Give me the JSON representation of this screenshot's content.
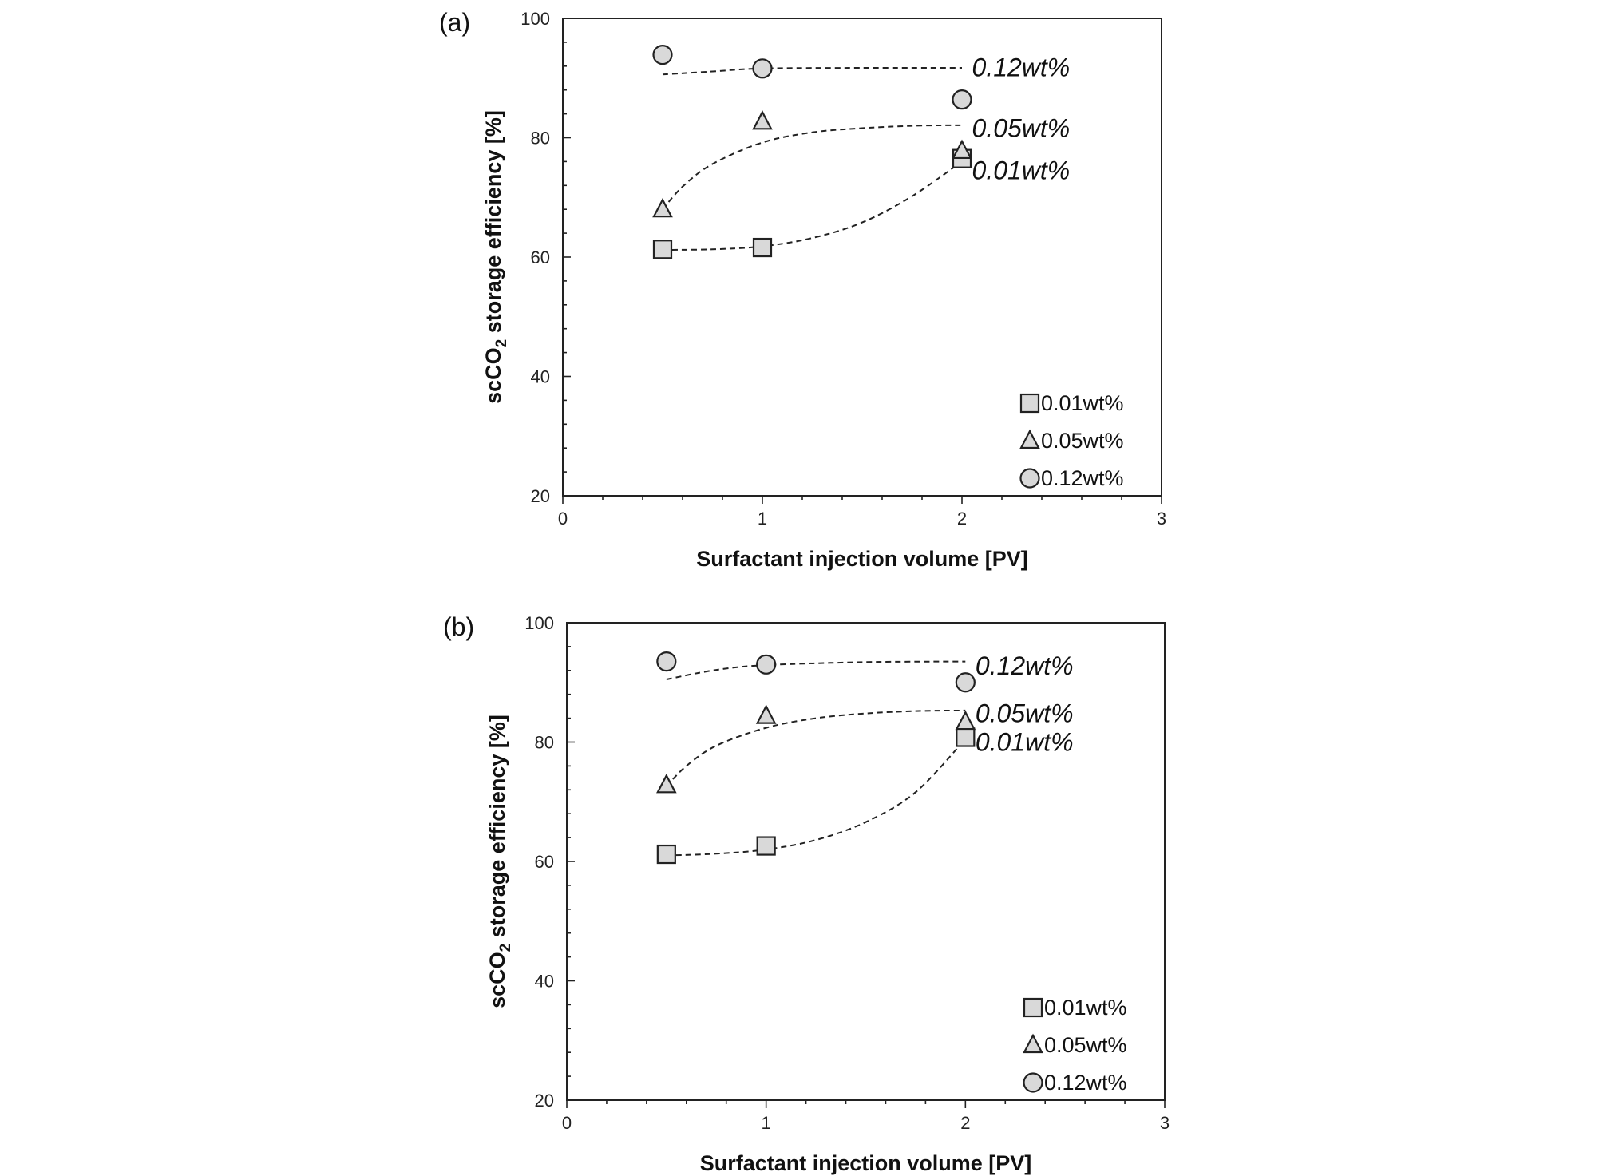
{
  "colors": {
    "marker_fill": "#d9d9d9",
    "stroke": "#222222",
    "background": "#ffffff"
  },
  "chart_data": [
    {
      "panel_label": "(a)",
      "type": "scatter",
      "title": "",
      "xlabel": "Surfactant injection volume [PV]",
      "ylabel": {
        "prefix": "scCO",
        "subscript": "2",
        "suffix": " storage efficiency [%]"
      },
      "xlim": [
        0,
        3
      ],
      "ylim": [
        20,
        100
      ],
      "xticks": [
        "0",
        "1",
        "2",
        "3"
      ],
      "yticks": [
        "20",
        "40",
        "60",
        "80",
        "100"
      ],
      "legend_position": "bottom-right",
      "series": [
        {
          "name": "0.01wt%",
          "marker": "square",
          "x": [
            0.5,
            1.0,
            2.0
          ],
          "y": [
            61.3,
            61.6,
            76.5
          ],
          "fit": {
            "x": [
              0.5,
              0.75,
              1.0,
              1.25,
              1.5,
              1.75,
              2.0
            ],
            "y": [
              61.2,
              61.3,
              61.8,
              63.2,
              65.8,
              70.2,
              76.0
            ]
          },
          "curve_label": "0.01wt%",
          "curve_label_at": [
            2.05,
            74.5
          ]
        },
        {
          "name": "0.05wt%",
          "marker": "triangle",
          "x": [
            0.5,
            1.0,
            2.0
          ],
          "y": [
            68.0,
            82.7,
            77.8
          ],
          "fit": {
            "x": [
              0.5,
              0.6,
              0.75,
              1.0,
              1.25,
              1.5,
              1.75,
              2.0
            ],
            "y": [
              68.0,
              71.8,
              75.6,
              79.2,
              80.9,
              81.6,
              82.0,
              82.1
            ]
          },
          "curve_label": "0.05wt%",
          "curve_label_at": [
            2.05,
            81.6
          ]
        },
        {
          "name": "0.12wt%",
          "marker": "circle",
          "x": [
            0.5,
            1.0,
            2.0
          ],
          "y": [
            93.9,
            91.6,
            86.4
          ],
          "fit": {
            "x": [
              0.5,
              0.75,
              1.0,
              1.5,
              2.0
            ],
            "y": [
              90.6,
              91.1,
              91.6,
              91.7,
              91.7
            ]
          },
          "curve_label": "0.12wt%",
          "curve_label_at": [
            2.05,
            91.8
          ]
        }
      ]
    },
    {
      "panel_label": "(b)",
      "type": "scatter",
      "title": "",
      "xlabel": "Surfactant injection volume [PV]",
      "ylabel": {
        "prefix": "scCO",
        "subscript": "2",
        "suffix": " storage efficiency [%]"
      },
      "xlim": [
        0,
        3
      ],
      "ylim": [
        20,
        100
      ],
      "xticks": [
        "0",
        "1",
        "2",
        "3"
      ],
      "yticks": [
        "20",
        "40",
        "60",
        "80",
        "100"
      ],
      "legend_position": "bottom-right",
      "series": [
        {
          "name": "0.01wt%",
          "marker": "square",
          "x": [
            0.5,
            1.0,
            2.0
          ],
          "y": [
            61.2,
            62.6,
            80.8
          ],
          "fit": {
            "x": [
              0.5,
              0.75,
              1.0,
              1.25,
              1.5,
              1.75,
              2.0
            ],
            "y": [
              61.0,
              61.3,
              62.0,
              63.6,
              66.6,
              71.6,
              80.5
            ]
          },
          "curve_label": "0.01wt%",
          "curve_label_at": [
            2.05,
            80.0
          ]
        },
        {
          "name": "0.05wt%",
          "marker": "triangle",
          "x": [
            0.5,
            1.0,
            2.0
          ],
          "y": [
            72.8,
            84.4,
            83.4
          ],
          "fit": {
            "x": [
              0.5,
              0.6,
              0.75,
              1.0,
              1.25,
              1.5,
              1.75,
              2.0
            ],
            "y": [
              72.6,
              76.0,
              79.4,
              82.4,
              84.0,
              84.8,
              85.2,
              85.3
            ]
          },
          "curve_label": "0.05wt%",
          "curve_label_at": [
            2.05,
            84.8
          ]
        },
        {
          "name": "0.12wt%",
          "marker": "circle",
          "x": [
            0.5,
            1.0,
            2.0
          ],
          "y": [
            93.5,
            93.0,
            90.0
          ],
          "fit": {
            "x": [
              0.5,
              0.75,
              1.0,
              1.5,
              2.0
            ],
            "y": [
              90.5,
              92.1,
              92.9,
              93.4,
              93.5
            ]
          },
          "curve_label": "0.12wt%",
          "curve_label_at": [
            2.05,
            92.8
          ]
        }
      ]
    }
  ]
}
